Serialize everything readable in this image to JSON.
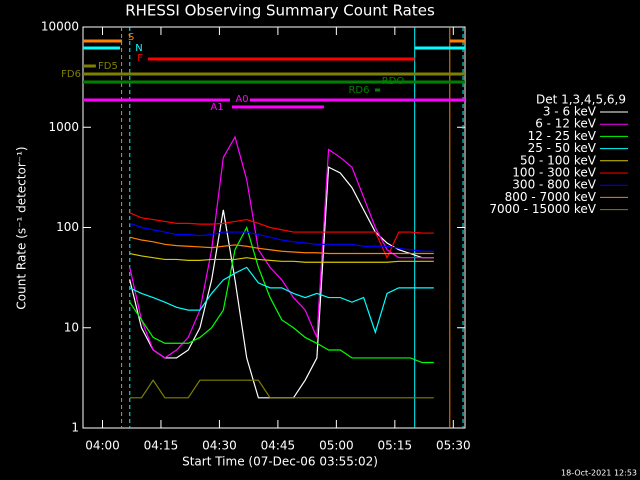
{
  "chart_data": {
    "type": "line",
    "title": "RHESSI Observing Summary Count Rates",
    "x_label": "Start Time (07-Dec-06 03:55:02)",
    "y_label": "Count Rate (s⁻¹ detector⁻¹)",
    "footer": "18-Oct-2021 12:53",
    "legend_title": "Det 1,3,4,5,6,9",
    "log_y": true,
    "xlim": [
      235,
      333
    ],
    "xticks": [
      {
        "value": 240,
        "label": "04:00"
      },
      {
        "value": 255,
        "label": "04:15"
      },
      {
        "value": 270,
        "label": "04:30"
      },
      {
        "value": 285,
        "label": "04:45"
      },
      {
        "value": 300,
        "label": "05:00"
      },
      {
        "value": 315,
        "label": "05:15"
      },
      {
        "value": 330,
        "label": "05:30"
      }
    ],
    "ylim": [
      1,
      10000
    ],
    "yticks": [
      1,
      10,
      100,
      1000,
      10000
    ],
    "x": [
      247,
      250,
      253,
      256,
      259,
      262,
      265,
      268,
      271,
      274,
      277,
      280,
      283,
      286,
      289,
      292,
      295,
      298,
      301,
      304,
      307,
      310,
      313,
      316,
      319,
      322,
      325
    ],
    "series": [
      {
        "name": "3 - 6 keV",
        "color": "#ffffff",
        "values": [
          30,
          10,
          6,
          5,
          5,
          6,
          10,
          30,
          150,
          30,
          5,
          2,
          2,
          2,
          2,
          3,
          5,
          400,
          350,
          250,
          150,
          90,
          70,
          60,
          55,
          50,
          50
        ]
      },
      {
        "name": "6 - 12 keV",
        "color": "#ff00ff",
        "values": [
          40,
          12,
          6,
          5,
          6,
          8,
          15,
          60,
          500,
          800,
          300,
          60,
          40,
          30,
          20,
          15,
          8,
          600,
          500,
          400,
          200,
          100,
          60,
          50,
          50,
          50,
          50
        ]
      },
      {
        "name": "12 - 25 keV",
        "color": "#00ff00",
        "values": [
          18,
          12,
          8,
          7,
          7,
          7,
          8,
          10,
          15,
          60,
          100,
          40,
          20,
          12,
          10,
          8,
          7,
          6,
          6,
          5,
          5,
          5,
          5,
          5,
          5,
          4.5,
          4.5
        ]
      },
      {
        "name": "25 - 50 keV",
        "color": "#00ffff",
        "values": [
          25,
          22,
          20,
          18,
          16,
          15,
          15,
          22,
          30,
          35,
          40,
          28,
          25,
          25,
          22,
          20,
          22,
          20,
          20,
          18,
          20,
          9,
          22,
          25,
          25,
          25,
          25
        ]
      },
      {
        "name": "50 - 100 keV",
        "color": "#d4c800",
        "values": [
          55,
          52,
          50,
          48,
          48,
          47,
          47,
          48,
          48,
          48,
          50,
          48,
          47,
          46,
          46,
          45,
          45,
          45,
          45,
          45,
          45,
          45,
          45,
          46,
          46,
          46,
          46
        ]
      },
      {
        "name": "100 - 300 keV",
        "color": "#ff0000",
        "values": [
          140,
          125,
          120,
          115,
          110,
          110,
          108,
          108,
          110,
          115,
          120,
          110,
          100,
          95,
          90,
          90,
          90,
          90,
          90,
          90,
          90,
          90,
          50,
          90,
          90,
          88,
          88
        ]
      },
      {
        "name": "300 - 800 keV",
        "color": "#0000ff",
        "values": [
          110,
          100,
          95,
          90,
          85,
          85,
          83,
          85,
          90,
          90,
          90,
          85,
          80,
          75,
          72,
          70,
          68,
          68,
          68,
          68,
          65,
          65,
          65,
          62,
          60,
          58,
          58
        ]
      },
      {
        "name": "800 - 7000 keV",
        "color": "#ff8000",
        "values": [
          80,
          75,
          72,
          68,
          66,
          65,
          64,
          63,
          65,
          67,
          65,
          62,
          60,
          58,
          57,
          56,
          56,
          55,
          55,
          55,
          55,
          55,
          55,
          55,
          55,
          55,
          55
        ]
      },
      {
        "name": "7000 - 15000 keV",
        "color": "#808000",
        "values": [
          2,
          2,
          3,
          2,
          2,
          2,
          3,
          3,
          3,
          3,
          3,
          3,
          2,
          2,
          2,
          2,
          2,
          2,
          2,
          2,
          2,
          2,
          2,
          2,
          2,
          2,
          2
        ]
      }
    ],
    "flags": [
      {
        "label": "S",
        "color": "#ff8000",
        "segments": [
          [
            235,
            245
          ],
          [
            329.1,
            333
          ]
        ]
      },
      {
        "label": "N",
        "color": "#00ffff",
        "segments": [
          [
            235,
            244.5
          ],
          [
            320.1,
            333
          ]
        ]
      },
      {
        "label": "F",
        "color": "#ff0000",
        "segments": [
          [
            251.7,
            320.1
          ]
        ]
      },
      {
        "label": "FD5",
        "color": "#808000",
        "segments": [
          [
            235,
            238.3
          ]
        ]
      },
      {
        "label": "FD6",
        "color": "#808000",
        "segments": [
          [
            235,
            333
          ]
        ]
      },
      {
        "label": "RDO",
        "color": "#008000",
        "segments": [
          [
            235,
            333
          ]
        ]
      },
      {
        "label": "RD6",
        "color": "#008000",
        "segments": [
          [
            309.9,
            311.2
          ]
        ]
      },
      {
        "label": "A0",
        "color": "#ff00ff",
        "segments": [
          [
            235,
            272.7
          ],
          [
            277.8,
            333
          ]
        ]
      },
      {
        "label": "A1",
        "color": "#ff00ff",
        "segments": [
          [
            273.2,
            296.8
          ]
        ]
      }
    ],
    "vlines": [
      {
        "x": 244.9,
        "color": "#ff8000",
        "dashed": true
      },
      {
        "x": 247,
        "color": "#00ffff",
        "dashed": true
      },
      {
        "x": 320.1,
        "color": "#00ffff",
        "dashed": false
      },
      {
        "x": 329.1,
        "color": "#ff8000",
        "dashed": false
      },
      {
        "x": 332.5,
        "color": "#00ffff",
        "dashed": true
      }
    ]
  }
}
